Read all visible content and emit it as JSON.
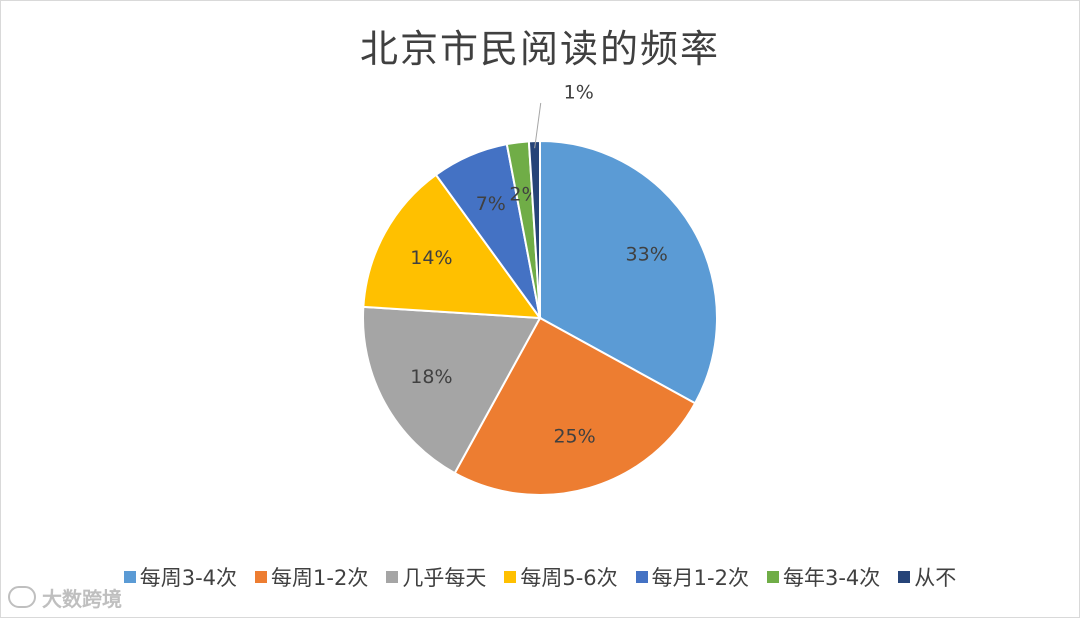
{
  "chart_data": {
    "type": "pie",
    "title": "北京市民阅读的频率",
    "legend_position": "bottom",
    "slices": [
      {
        "name": "每周3-4次",
        "value": 33,
        "label": "33%",
        "color": "#5B9BD5"
      },
      {
        "name": "每周1-2次",
        "value": 25,
        "label": "25%",
        "color": "#ED7D31"
      },
      {
        "name": "几乎每天",
        "value": 18,
        "label": "18%",
        "color": "#A5A5A5"
      },
      {
        "name": "每周5-6次",
        "value": 14,
        "label": "14%",
        "color": "#FFC000"
      },
      {
        "name": "每月1-2次",
        "value": 7,
        "label": "7%",
        "color": "#4472C4"
      },
      {
        "name": "每年3-4次",
        "value": 2,
        "label": "2%",
        "color": "#70AD47"
      },
      {
        "name": "从不",
        "value": 1,
        "label": "1%",
        "color": "#264478"
      }
    ]
  },
  "watermark": {
    "text": "大数跨境"
  }
}
